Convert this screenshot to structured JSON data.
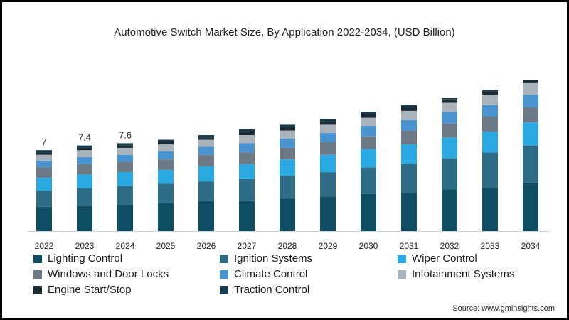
{
  "chart_data": {
    "type": "bar",
    "stacked": true,
    "title": "Automotive Switch Market Size, By Application 2022-2034, (USD Billion)",
    "xlabel": "",
    "ylabel": "",
    "ylim": [
      0,
      14
    ],
    "grid": false,
    "legend_position": "bottom",
    "categories": [
      "2022",
      "2023",
      "2024",
      "2025",
      "2026",
      "2027",
      "2028",
      "2029",
      "2030",
      "2031",
      "2032",
      "2033",
      "2034"
    ],
    "totals": [
      7.0,
      7.4,
      7.6,
      7.9,
      8.3,
      8.8,
      9.2,
      9.7,
      10.3,
      10.9,
      11.5,
      12.2,
      13.1
    ],
    "total_labels": [
      "7",
      "7.4",
      "7.6",
      "",
      "",
      "",
      "",
      "",
      "",
      "",
      "",
      "",
      ""
    ],
    "series": [
      {
        "name": "Lighting Control",
        "color": "#0e4d63",
        "values": [
          2.1,
          2.2,
          2.3,
          2.4,
          2.6,
          2.6,
          2.8,
          3.0,
          3.2,
          3.3,
          3.6,
          3.8,
          4.2
        ]
      },
      {
        "name": "Ignition Systems",
        "color": "#2f6d86",
        "values": [
          1.4,
          1.5,
          1.6,
          1.7,
          1.7,
          1.9,
          2.0,
          2.1,
          2.3,
          2.5,
          2.7,
          3.0,
          3.2
        ]
      },
      {
        "name": "Wiper Control",
        "color": "#29a8e2",
        "values": [
          1.1,
          1.2,
          1.2,
          1.2,
          1.3,
          1.3,
          1.4,
          1.5,
          1.6,
          1.7,
          1.8,
          1.8,
          2.0
        ]
      },
      {
        "name": "Windows and Door Locks",
        "color": "#6b7a86",
        "values": [
          0.9,
          0.9,
          0.9,
          0.9,
          1.0,
          1.0,
          1.0,
          1.1,
          1.1,
          1.2,
          1.2,
          1.3,
          1.3
        ]
      },
      {
        "name": "Climate Control",
        "color": "#4a93d1",
        "values": [
          0.6,
          0.6,
          0.6,
          0.7,
          0.7,
          0.8,
          0.8,
          0.8,
          0.9,
          0.9,
          1.0,
          1.0,
          1.1
        ]
      },
      {
        "name": "Infotainment Systems",
        "color": "#a9b3bb",
        "values": [
          0.5,
          0.6,
          0.6,
          0.6,
          0.6,
          0.7,
          0.7,
          0.7,
          0.7,
          0.8,
          0.8,
          0.9,
          1.0
        ]
      },
      {
        "name": "Engine Start/Stop",
        "color": "#1d2c33",
        "values": [
          0.2,
          0.2,
          0.2,
          0.2,
          0.2,
          0.3,
          0.3,
          0.3,
          0.3,
          0.3,
          0.3,
          0.3,
          0.3
        ]
      },
      {
        "name": "Traction Control",
        "color": "#163a4f",
        "values": [
          0.2,
          0.2,
          0.2,
          0.2,
          0.2,
          0.2,
          0.2,
          0.2,
          0.2,
          0.2,
          0.1,
          0.1,
          0.0
        ]
      }
    ],
    "source": "Source: www.gminsights.com"
  }
}
